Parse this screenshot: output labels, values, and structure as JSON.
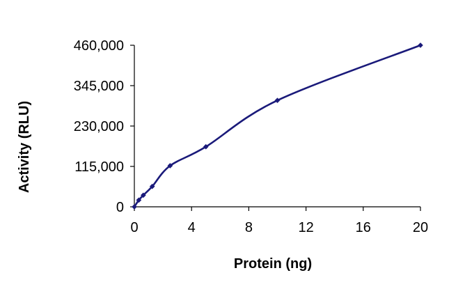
{
  "chart_data": {
    "type": "line",
    "title": "",
    "xlabel": "Protein (ng)",
    "ylabel": "Activity (RLU)",
    "xlim": [
      0,
      20
    ],
    "ylim": [
      0,
      460000
    ],
    "x_ticks": [
      0,
      4,
      8,
      12,
      16,
      20
    ],
    "x_tick_labels": [
      "0",
      "4",
      "8",
      "12",
      "16",
      "20"
    ],
    "y_ticks": [
      0,
      115000,
      230000,
      345000,
      460000
    ],
    "y_tick_labels": [
      "0",
      "115,000",
      "230,000",
      "345,000",
      "460,000"
    ],
    "grid": false,
    "legend": "none",
    "series": [
      {
        "color": "#1a1a7a",
        "marker": "diamond",
        "smooth": true,
        "x": [
          0,
          0.31,
          0.625,
          1.25,
          2.5,
          5,
          10,
          20
        ],
        "y": [
          0,
          19000,
          33000,
          58000,
          117000,
          171000,
          303000,
          460000
        ]
      }
    ]
  }
}
